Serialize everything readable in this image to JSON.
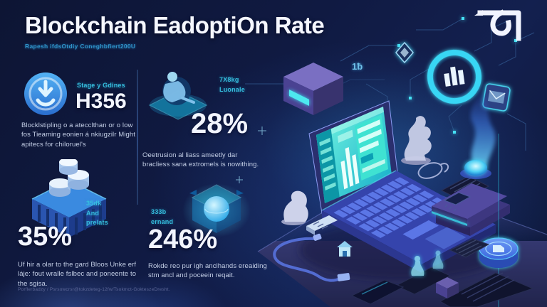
{
  "header": {
    "title": "Blockchain EadoptiOn Rate",
    "subtitle": "Rapesh ifdsOtdiy Coneghbfiert200U"
  },
  "stats": [
    {
      "id": "downloads",
      "icon": "download-circle-icon",
      "label_lines": [
        "Stage y Gdines"
      ],
      "value": "H356",
      "description": "Blocklstipling o a atecclthan or o low fos Tieaming eonien á nkiugzilr Might apitecs for chiloruel's"
    },
    {
      "id": "users",
      "icon": "person-hologram-icon",
      "label_lines": [
        "7X8kg",
        "Luonale"
      ],
      "value": "28%",
      "description": "Oeetrusion al liass ameetly dar bracliess sana extromels is nowithing."
    },
    {
      "id": "coins",
      "icon": "coin-stack-platform-icon",
      "label_lines": [
        "35dk",
        "And",
        "prelats"
      ],
      "value": "35%",
      "description": "Uf hir a olar to the gard Bloos Unke erf láje: fout wralle fslbec and poneente to the sgisa."
    },
    {
      "id": "demand",
      "icon": "globe-cube-icon",
      "label_lines": [
        "333b",
        "ernand"
      ],
      "value": "246%",
      "description": "Rokde reo pur igh anclhands ereaiding stm ancl and poceein reqait."
    }
  ],
  "illustration": {
    "node_label": "1ƀ",
    "items": [
      "laptop-dashboard",
      "crypto-wallet-box",
      "bar-chart-ring-icon",
      "diamond-icon",
      "envelope-icon",
      "hologram-flame-orb",
      "ledger-books",
      "crypto-coin-token",
      "statue-figurine",
      "knight-statue",
      "usb-cable",
      "tablets",
      "hologram-figures"
    ]
  },
  "footer": {
    "text": "Porflerbadzy / Psrsowcrsr@tokzdeteg-12fw/Tsokmct-GokteszeDresht."
  },
  "colors": {
    "accent_cyan": "#35cde8",
    "title_white": "#f5f7ff",
    "subtitle_blue": "#2f93c8",
    "background_navy": "#0d1534",
    "desc_gray": "#c4cfe6",
    "desk_purple": "#3c4186",
    "keyboard_blue": "#5b76e6",
    "screen_teal": "#29d6c9"
  }
}
